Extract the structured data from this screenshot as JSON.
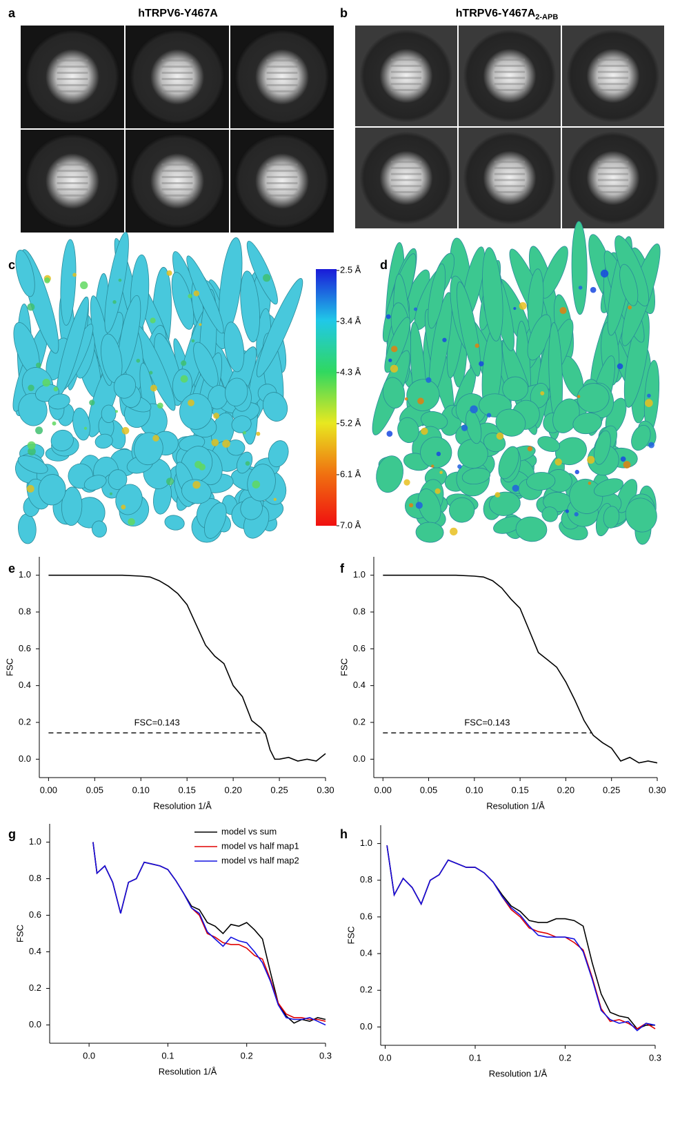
{
  "figure": {
    "panel_labels": [
      "a",
      "b",
      "c",
      "d"
    ],
    "panel_a_title": "hTRPV6-Y467A",
    "panel_b_title": "hTRPV6-Y467A",
    "panel_b_title_subscript": "2-APB",
    "colorbar": {
      "lim": [
        2.5,
        7.0
      ],
      "ticks": [
        {
          "value": 2.5,
          "label": "2.5 Å"
        },
        {
          "value": 3.4,
          "label": "3.4 Å"
        },
        {
          "value": 4.3,
          "label": "4.3 Å"
        },
        {
          "value": 5.2,
          "label": "5.2 Å"
        },
        {
          "value": 6.1,
          "label": "6.1 Å"
        },
        {
          "value": 7.0,
          "label": "7.0 Å"
        }
      ]
    }
  },
  "chart_data": [
    {
      "type": "line",
      "panel_label": "e",
      "xlabel": "Resolution 1/Å",
      "ylabel": "FSC",
      "x": [
        0,
        0.02,
        0.04,
        0.06,
        0.08,
        0.1,
        0.11,
        0.12,
        0.13,
        0.14,
        0.15,
        0.16,
        0.17,
        0.18,
        0.19,
        0.2,
        0.21,
        0.22,
        0.23,
        0.235,
        0.24,
        0.245,
        0.25,
        0.26,
        0.27,
        0.28,
        0.29,
        0.3
      ],
      "series": [
        {
          "color": "#000000",
          "values": [
            1,
            1,
            1,
            1,
            1,
            0.995,
            0.99,
            0.97,
            0.94,
            0.9,
            0.84,
            0.73,
            0.62,
            0.56,
            0.52,
            0.4,
            0.34,
            0.21,
            0.17,
            0.14,
            0.05,
            0,
            0,
            0.01,
            -0.01,
            0,
            -0.01,
            0.03
          ]
        }
      ],
      "threshold": {
        "label": "FSC=0.143",
        "y": 0.143,
        "x": [
          0,
          0.235
        ]
      },
      "xlim": [
        -0.01,
        0.3
      ],
      "ylim": [
        -0.1,
        1.1
      ],
      "xticks": [
        {
          "value": 0,
          "label": "0.00"
        },
        0.05,
        {
          "value": 0.1,
          "label": "0.10"
        },
        0.15,
        {
          "value": 0.2,
          "label": "0.20"
        },
        0.25,
        {
          "value": 0.3,
          "label": "0.30"
        }
      ],
      "yticks": [
        {
          "value": 0,
          "label": "0.0"
        },
        0.2,
        0.4,
        0.6,
        0.8,
        {
          "value": 1,
          "label": "1.0"
        }
      ]
    },
    {
      "type": "line",
      "panel_label": "f",
      "xlabel": "Resolution 1/Å",
      "ylabel": "FSC",
      "x": [
        0,
        0.02,
        0.04,
        0.06,
        0.08,
        0.1,
        0.11,
        0.12,
        0.13,
        0.14,
        0.15,
        0.16,
        0.17,
        0.18,
        0.19,
        0.2,
        0.21,
        0.22,
        0.23,
        0.24,
        0.25,
        0.26,
        0.27,
        0.28,
        0.29,
        0.3
      ],
      "series": [
        {
          "color": "#000000",
          "values": [
            1,
            1,
            1,
            1,
            1,
            0.995,
            0.99,
            0.97,
            0.93,
            0.87,
            0.82,
            0.7,
            0.58,
            0.54,
            0.5,
            0.42,
            0.32,
            0.21,
            0.13,
            0.09,
            0.06,
            -0.01,
            0.01,
            -0.02,
            -0.01,
            -0.02
          ]
        }
      ],
      "threshold": {
        "label": "FSC=0.143",
        "y": 0.143,
        "x": [
          0,
          0.228
        ]
      },
      "xlim": [
        -0.01,
        0.3
      ],
      "ylim": [
        -0.1,
        1.1
      ],
      "xticks": [
        {
          "value": 0,
          "label": "0.00"
        },
        0.05,
        {
          "value": 0.1,
          "label": "0.10"
        },
        0.15,
        {
          "value": 0.2,
          "label": "0.20"
        },
        0.25,
        {
          "value": 0.3,
          "label": "0.30"
        }
      ],
      "yticks": [
        {
          "value": 0,
          "label": "0.0"
        },
        0.2,
        0.4,
        0.6,
        0.8,
        {
          "value": 1,
          "label": "1.0"
        }
      ]
    },
    {
      "type": "line",
      "panel_label": "g",
      "xlabel": "Resolution 1/Å",
      "ylabel": "FSC",
      "legend": "upper right",
      "x": [
        0.005,
        0.01,
        0.02,
        0.03,
        0.04,
        0.05,
        0.06,
        0.07,
        0.08,
        0.09,
        0.1,
        0.11,
        0.12,
        0.13,
        0.14,
        0.15,
        0.16,
        0.17,
        0.18,
        0.19,
        0.2,
        0.21,
        0.22,
        0.23,
        0.24,
        0.25,
        0.26,
        0.27,
        0.28,
        0.29,
        0.3
      ],
      "series": [
        {
          "name": "model vs sum",
          "color": "#000000",
          "values": [
            1,
            0.83,
            0.87,
            0.78,
            0.61,
            0.78,
            0.8,
            0.89,
            0.88,
            0.87,
            0.85,
            0.79,
            0.72,
            0.65,
            0.63,
            0.56,
            0.54,
            0.5,
            0.55,
            0.54,
            0.56,
            0.52,
            0.47,
            0.29,
            0.12,
            0.05,
            0.01,
            0.03,
            0.02,
            0.04,
            0.03
          ]
        },
        {
          "name": "model vs half map1",
          "color": "#e00000",
          "values": [
            1,
            0.83,
            0.87,
            0.78,
            0.61,
            0.78,
            0.8,
            0.89,
            0.88,
            0.87,
            0.85,
            0.79,
            0.72,
            0.64,
            0.6,
            0.5,
            0.48,
            0.45,
            0.44,
            0.44,
            0.42,
            0.38,
            0.36,
            0.25,
            0.12,
            0.06,
            0.04,
            0.04,
            0.03,
            0.03,
            0.02
          ]
        },
        {
          "name": "model vs half map2",
          "color": "#1010e0",
          "values": [
            1,
            0.83,
            0.87,
            0.78,
            0.61,
            0.78,
            0.8,
            0.89,
            0.88,
            0.87,
            0.85,
            0.79,
            0.72,
            0.64,
            0.61,
            0.51,
            0.47,
            0.43,
            0.48,
            0.46,
            0.45,
            0.4,
            0.34,
            0.24,
            0.11,
            0.04,
            0.03,
            0.03,
            0.04,
            0.02,
            0
          ]
        }
      ],
      "xlim": [
        -0.05,
        0.3
      ],
      "ylim": [
        -0.1,
        1.1
      ],
      "xticks": [
        {
          "value": 0,
          "label": "0.0"
        },
        0.1,
        0.2,
        0.3
      ],
      "yticks": [
        {
          "value": 0,
          "label": "0.0"
        },
        0.2,
        0.4,
        0.6,
        0.8,
        {
          "value": 1,
          "label": "1.0"
        }
      ]
    },
    {
      "type": "line",
      "panel_label": "h",
      "xlabel": "Resolution 1/Å",
      "ylabel": "FSC",
      "x": [
        0.002,
        0.01,
        0.02,
        0.03,
        0.04,
        0.05,
        0.06,
        0.07,
        0.08,
        0.09,
        0.1,
        0.11,
        0.12,
        0.13,
        0.14,
        0.15,
        0.16,
        0.17,
        0.18,
        0.19,
        0.2,
        0.21,
        0.22,
        0.23,
        0.24,
        0.25,
        0.26,
        0.27,
        0.28,
        0.29,
        0.3
      ],
      "series": [
        {
          "color": "#000000",
          "values": [
            0.99,
            0.72,
            0.81,
            0.76,
            0.67,
            0.8,
            0.83,
            0.91,
            0.89,
            0.87,
            0.87,
            0.84,
            0.79,
            0.72,
            0.66,
            0.63,
            0.58,
            0.57,
            0.57,
            0.59,
            0.59,
            0.58,
            0.55,
            0.35,
            0.18,
            0.08,
            0.06,
            0.05,
            -0.01,
            0.01,
            0.01
          ]
        },
        {
          "color": "#e00000",
          "values": [
            0.99,
            0.72,
            0.81,
            0.76,
            0.67,
            0.8,
            0.83,
            0.91,
            0.89,
            0.87,
            0.87,
            0.84,
            0.79,
            0.71,
            0.64,
            0.6,
            0.54,
            0.52,
            0.51,
            0.49,
            0.49,
            0.46,
            0.42,
            0.27,
            0.1,
            0.03,
            0.04,
            0.02,
            -0.01,
            0.02,
            -0.01
          ]
        },
        {
          "color": "#1010e0",
          "values": [
            0.99,
            0.72,
            0.81,
            0.76,
            0.67,
            0.8,
            0.83,
            0.91,
            0.89,
            0.87,
            0.87,
            0.84,
            0.79,
            0.71,
            0.65,
            0.61,
            0.55,
            0.5,
            0.49,
            0.49,
            0.49,
            0.48,
            0.41,
            0.26,
            0.09,
            0.04,
            0.02,
            0.03,
            -0.02,
            0.02,
            0.01
          ]
        }
      ],
      "xlim": [
        -0.005,
        0.3
      ],
      "ylim": [
        -0.1,
        1.1
      ],
      "xticks": [
        {
          "value": 0,
          "label": "0.0"
        },
        0.1,
        0.2,
        0.3
      ],
      "yticks": [
        {
          "value": 0,
          "label": "0.0"
        },
        0.2,
        0.4,
        0.6,
        0.8,
        {
          "value": 1,
          "label": "1.0"
        }
      ]
    }
  ]
}
